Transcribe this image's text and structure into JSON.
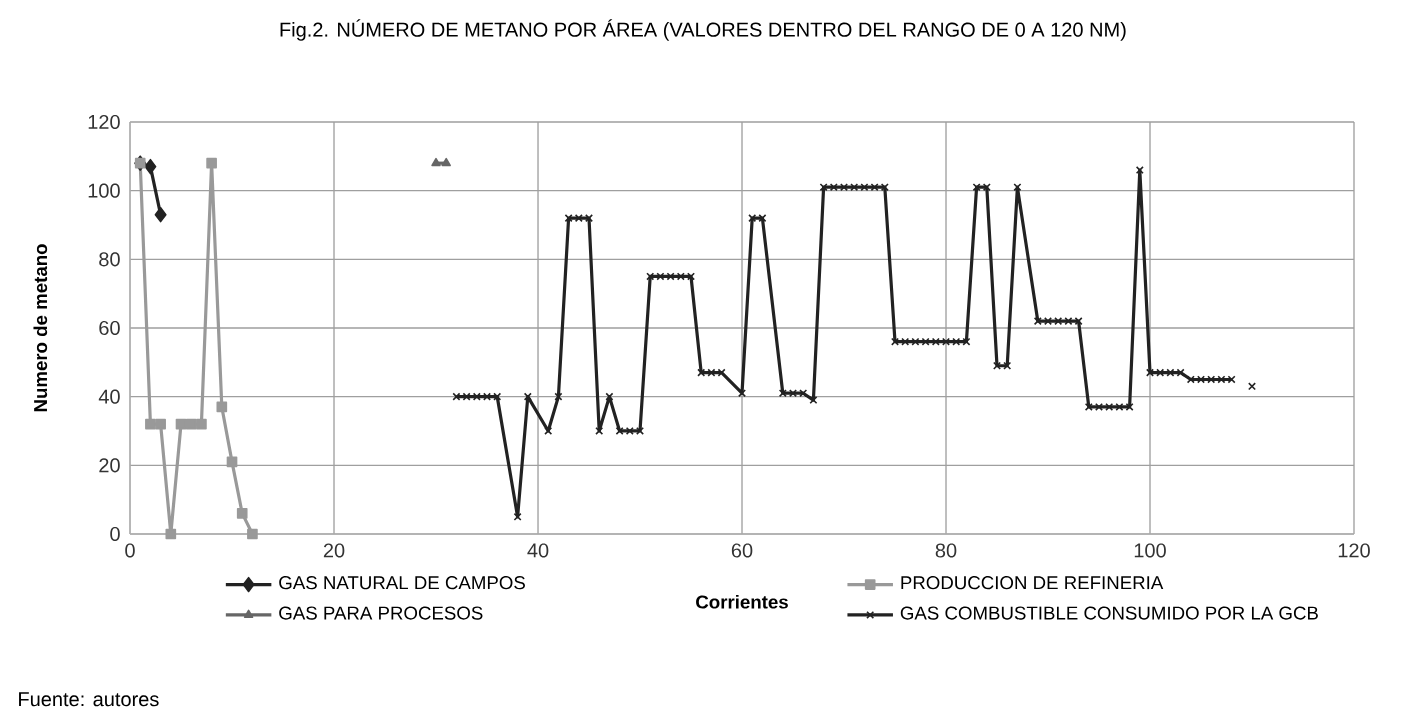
{
  "chart_data": {
    "type": "line",
    "title": "Fig.2. NÚMERO DE METANO POR ÁREA (VALORES DENTRO DEL RANGO DE 0 A 120 NM)",
    "xlabel": "Corrientes",
    "ylabel": "Numero de metano",
    "annotations": [
      "Fuente: autores"
    ],
    "xlim": [
      0,
      120
    ],
    "xticks": [
      0,
      20,
      40,
      60,
      80,
      100,
      120
    ],
    "ylim": [
      0,
      120
    ],
    "yticks": [
      0,
      20,
      40,
      60,
      80,
      100,
      120
    ],
    "grid": true,
    "legend": "bottom",
    "series": [
      {
        "name": "GAS NATURAL DE CAMPOS",
        "color": "#222222",
        "marker": "diamond",
        "x": [
          1,
          2,
          3
        ],
        "values": [
          108,
          107,
          93
        ]
      },
      {
        "name": "PRODUCCION DE REFINERIA",
        "color": "#999999",
        "marker": "square",
        "x": [
          1,
          2,
          3,
          4,
          5,
          6,
          7,
          8,
          9,
          10,
          11,
          12
        ],
        "values": [
          108,
          32,
          32,
          0,
          32,
          32,
          32,
          108,
          37,
          21,
          6,
          0
        ]
      },
      {
        "name": "GAS PARA PROCESOS",
        "color": "#666666",
        "marker": "triangle",
        "x": [
          30,
          31
        ],
        "values": [
          108,
          108
        ]
      },
      {
        "name": "GAS COMBUSTIBLE CONSUMIDO POR LA GCB",
        "color": "#222222",
        "marker": "cross",
        "x": [
          32,
          33,
          34,
          35,
          36,
          38,
          39,
          41,
          42,
          43,
          44,
          45,
          46,
          47,
          48,
          49,
          50,
          51,
          52,
          53,
          54,
          55,
          56,
          57,
          58,
          60,
          61,
          62,
          64,
          65,
          66,
          67,
          68,
          69,
          70,
          71,
          72,
          73,
          74,
          75,
          76,
          77,
          78,
          79,
          80,
          81,
          82,
          83,
          84,
          85,
          86,
          87,
          89,
          90,
          91,
          92,
          93,
          94,
          95,
          96,
          97,
          98,
          99,
          100,
          101,
          102,
          103,
          104,
          105,
          106,
          107,
          108,
          109,
          110
        ],
        "values": [
          40,
          40,
          40,
          40,
          40,
          5,
          40,
          30,
          40,
          92,
          92,
          92,
          30,
          40,
          30,
          30,
          30,
          75,
          75,
          75,
          75,
          75,
          47,
          47,
          47,
          41,
          92,
          92,
          41,
          41,
          41,
          39,
          101,
          101,
          101,
          101,
          101,
          101,
          101,
          56,
          56,
          56,
          56,
          56,
          56,
          56,
          56,
          101,
          101,
          49,
          49,
          101,
          62,
          62,
          62,
          62,
          62,
          37,
          37,
          37,
          37,
          37,
          106,
          47,
          47,
          47,
          47,
          45,
          45,
          45,
          45,
          45,
          null,
          43
        ]
      }
    ]
  }
}
